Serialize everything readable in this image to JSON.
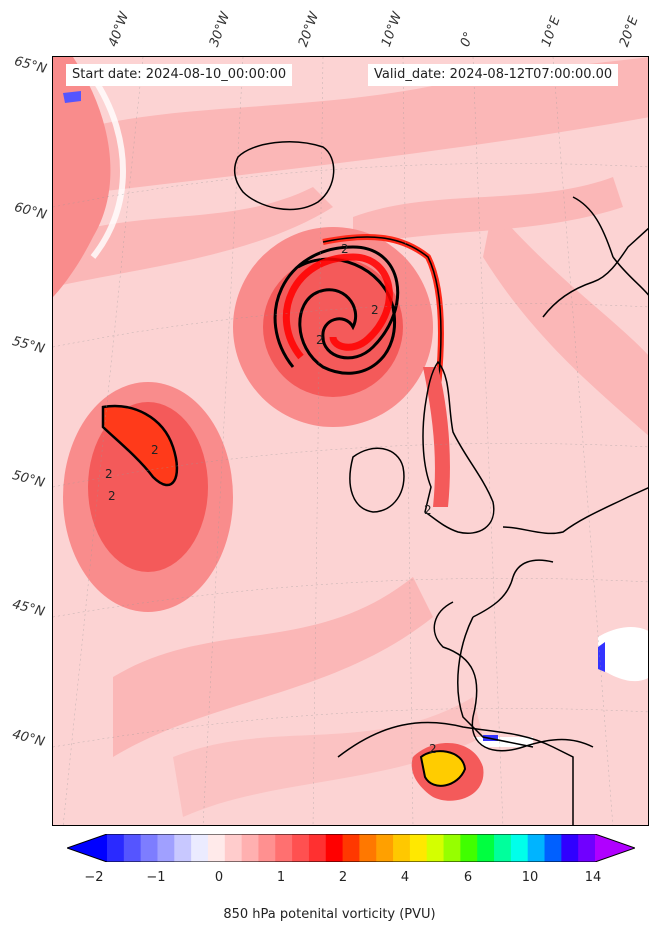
{
  "header": {
    "start_date": "Start date: 2024-08-10_00:00:00",
    "valid_date": "Valid_date: 2024-08-12T07:00:00.00"
  },
  "map": {
    "variable": "850 hPa potential vorticity",
    "lon_labels": [
      "40°W",
      "30°W",
      "20°W",
      "10°W",
      "0°",
      "10°E",
      "20°E"
    ],
    "lat_labels": [
      "65°N",
      "60°N",
      "55°N",
      "50°N",
      "45°N",
      "40°N"
    ],
    "contour_labels": [
      "2",
      "2",
      "2",
      "2",
      "2",
      "2",
      "2",
      "2"
    ],
    "colors": {
      "pale": "#fde0e0",
      "light": "#fbb7b7",
      "medium": "#f98c8c",
      "strong": "#f45a5a",
      "red": "#ff1a1a",
      "orange": "#ff7f00",
      "yellow": "#ffee00",
      "blue": "#3333ff",
      "coast": "#000000"
    }
  },
  "colorbar": {
    "title": "850 hPa potenital vorticity (PVU)",
    "tick_labels": [
      "−2",
      "−1",
      "0",
      "1",
      "2",
      "4",
      "6",
      "10",
      "14"
    ],
    "colors": [
      "#0000ff",
      "#2a2aff",
      "#5555ff",
      "#7d7dff",
      "#a0a0ff",
      "#c8c8ff",
      "#ebebff",
      "#ffeaea",
      "#ffcccc",
      "#ffb0b0",
      "#ff9090",
      "#ff7070",
      "#ff5050",
      "#ff3030",
      "#ff0000",
      "#ff3800",
      "#ff7800",
      "#ffa000",
      "#ffc800",
      "#ffe800",
      "#d4ff00",
      "#96ff00",
      "#40ff00",
      "#00ff40",
      "#00ff9c",
      "#00ffea",
      "#00b4ff",
      "#0060ff",
      "#3000ff",
      "#7000ff",
      "#b000ff"
    ]
  }
}
